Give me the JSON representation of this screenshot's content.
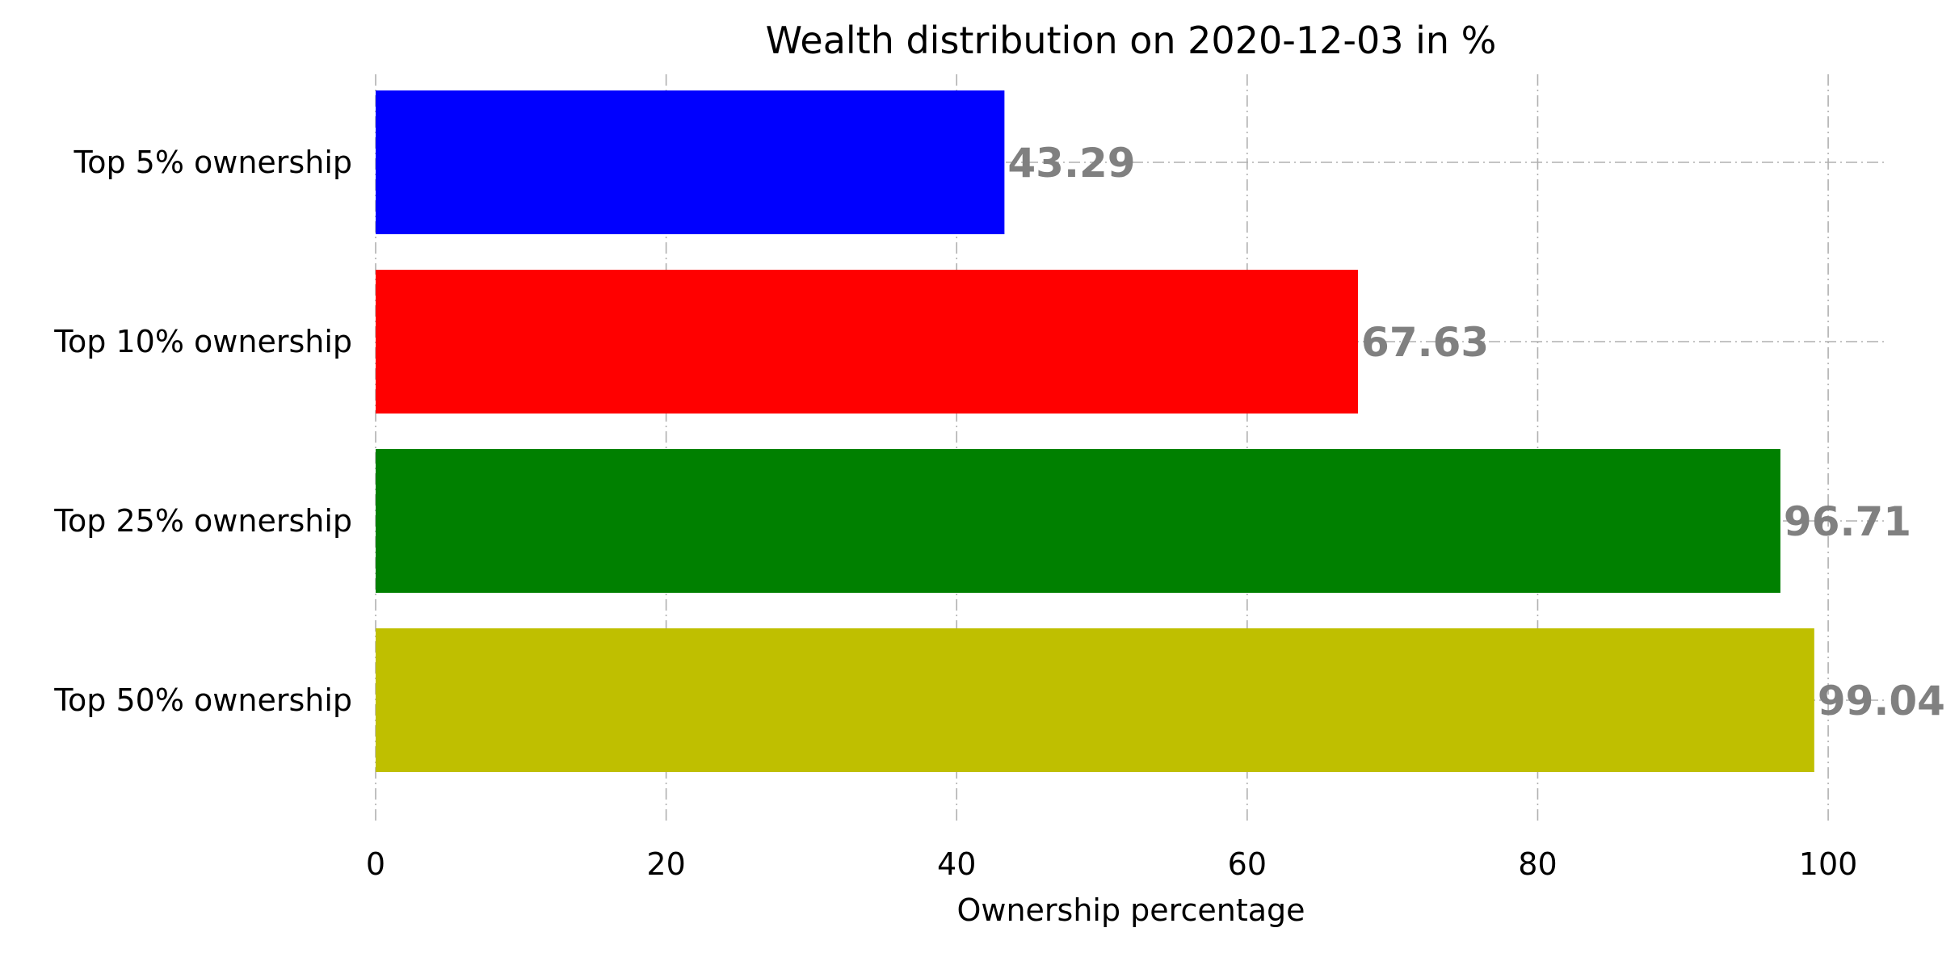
{
  "chart_data": {
    "type": "bar",
    "orientation": "horizontal",
    "title": "Wealth distribution on 2020-12-03 in %",
    "xlabel": "Ownership percentage",
    "ylabel": "",
    "categories": [
      "Top 5% ownership",
      "Top 10% ownership",
      "Top 25% ownership",
      "Top 50% ownership"
    ],
    "values": [
      43.29,
      67.63,
      96.71,
      99.04
    ],
    "value_labels": [
      "43.29",
      "67.63",
      "96.71",
      "99.04"
    ],
    "bar_colors": [
      "#0000ff",
      "#ff0000",
      "#008000",
      "#bfbf00"
    ],
    "value_label_color": "#808080",
    "xlim": [
      0,
      104
    ],
    "xticks": [
      0,
      20,
      40,
      60,
      80,
      100
    ],
    "xtick_labels": [
      "0",
      "20",
      "40",
      "60",
      "80",
      "100"
    ],
    "grid": true,
    "grid_style": "dash-dot",
    "legend": false
  }
}
